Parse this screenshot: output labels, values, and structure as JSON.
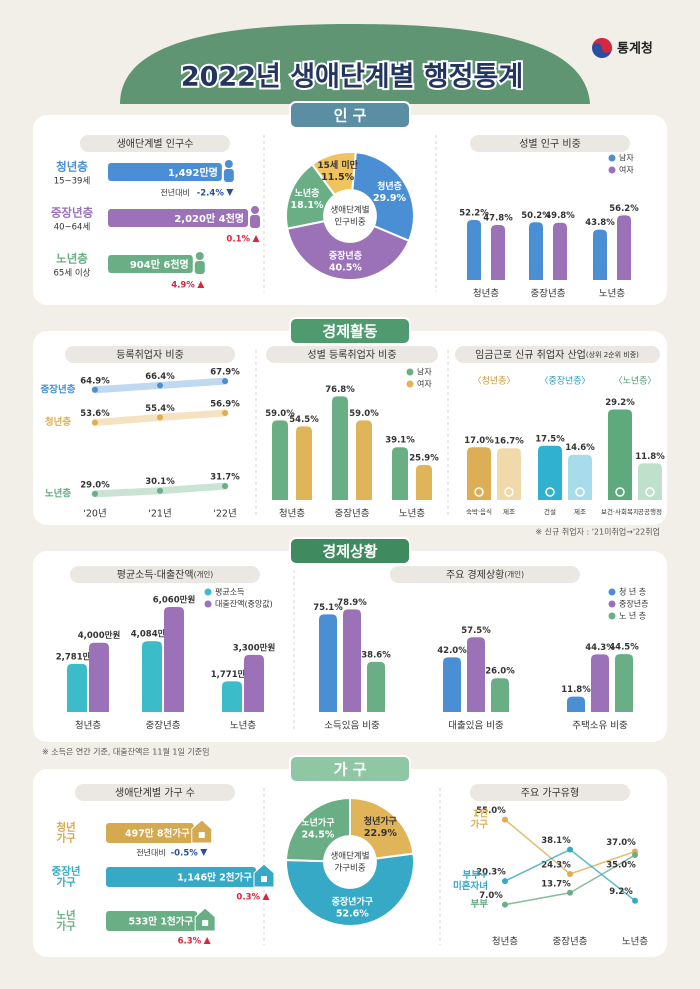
{
  "header": {
    "title": "2022년 생애단계별 행정통계",
    "org": "통계청"
  },
  "population": {
    "tab": "인 구",
    "count": {
      "title": "생애단계별 인구수",
      "rows": [
        {
          "name": "청년층",
          "age": "15~39세",
          "value": 1492,
          "value_label": "1,492만명",
          "color": "#4a8fd4",
          "note": "전년대비",
          "change": -2.4,
          "change_label": "-2.4%"
        },
        {
          "name": "중장년층",
          "age": "40~64세",
          "value": 2020.4,
          "value_label": "2,020만 4천명",
          "color": "#9b72b8",
          "change": 0.1,
          "change_label": "0.1%"
        },
        {
          "name": "노년층",
          "age": "65세 이상",
          "value": 904.6,
          "value_label": "904만 6천명",
          "color": "#6aae86",
          "change": 4.9,
          "change_label": "4.9%"
        }
      ]
    },
    "share": {
      "center": [
        "생애단계별",
        "인구비중"
      ],
      "categories": [
        "청년층",
        "중장년층",
        "노년층",
        "15세 미만"
      ],
      "values": [
        29.9,
        40.5,
        18.1,
        11.5
      ],
      "value_labels": [
        "29.9%",
        "40.5%",
        "18.1%",
        "11.5%"
      ],
      "colors": [
        "#4a8fd4",
        "#9b72b8",
        "#6aae86",
        "#f0c35e"
      ]
    },
    "gender": {
      "title": "성별 인구 비중",
      "categories": [
        "청년층",
        "중장년층",
        "노년층"
      ],
      "series": [
        {
          "name": "남자",
          "color": "#4a8fd4",
          "values": [
            52.2,
            50.2,
            43.8
          ],
          "value_labels": [
            "52.2%",
            "50.2%",
            "43.8%"
          ]
        },
        {
          "name": "여자",
          "color": "#9b72b8",
          "values": [
            47.8,
            49.8,
            56.2
          ],
          "value_labels": [
            "47.8%",
            "49.8%",
            "56.2%"
          ]
        }
      ]
    }
  },
  "economic_activity": {
    "tab": "경제활동",
    "registered": {
      "title": "등록취업자 비중",
      "x": [
        "'20년",
        "'21년",
        "'22년"
      ],
      "series": [
        {
          "name": "중장년층",
          "color": "#4a8fd4",
          "values": [
            64.9,
            66.4,
            67.9
          ],
          "value_labels": [
            "64.9%",
            "66.4%",
            "67.9%"
          ]
        },
        {
          "name": "청년층",
          "color": "#e0ad4c",
          "values": [
            53.6,
            55.4,
            56.9
          ],
          "value_labels": [
            "53.6%",
            "55.4%",
            "56.9%"
          ]
        },
        {
          "name": "노년층",
          "color": "#6aae86",
          "values": [
            29.0,
            30.1,
            31.7
          ],
          "value_labels": [
            "29.0%",
            "30.1%",
            "31.7%"
          ]
        }
      ]
    },
    "gender": {
      "title": "성별 등록취업자 비중",
      "categories": [
        "청년층",
        "중장년층",
        "노년층"
      ],
      "series": [
        {
          "name": "남자",
          "color": "#6aae86",
          "values": [
            59.0,
            76.8,
            39.1
          ],
          "value_labels": [
            "59.0%",
            "76.8%",
            "39.1%"
          ]
        },
        {
          "name": "여자",
          "color": "#e0b458",
          "values": [
            54.5,
            59.0,
            25.9
          ],
          "value_labels": [
            "54.5%",
            "59.0%",
            "25.9%"
          ]
        }
      ]
    },
    "industry": {
      "title": "임금근로 신규 취업자 산업",
      "title_note": "(상위 2순위 비중)",
      "groups": [
        {
          "name": "〈청년층〉",
          "color": "#c99a3e",
          "items": [
            {
              "name": "숙박·음식",
              "value": 17.0,
              "value_label": "17.0%",
              "color": "#dcae55"
            },
            {
              "name": "제조",
              "value": 16.7,
              "value_label": "16.7%",
              "color": "#f0d9aa"
            }
          ]
        },
        {
          "name": "〈중장년층〉",
          "color": "#2a9fc0",
          "items": [
            {
              "name": "건설",
              "value": 17.5,
              "value_label": "17.5%",
              "color": "#2fb1cf"
            },
            {
              "name": "제조",
              "value": 14.6,
              "value_label": "14.6%",
              "color": "#a9dcea"
            }
          ]
        },
        {
          "name": "〈노년층〉",
          "color": "#4f9a6e",
          "items": [
            {
              "name": "보건·사회복지",
              "value": 29.2,
              "value_label": "29.2%",
              "color": "#5eaa7c"
            },
            {
              "name": "공공행정",
              "value": 11.8,
              "value_label": "11.8%",
              "color": "#bfe0cb"
            }
          ]
        }
      ],
      "note": "※ 신규 취업자 : '21미취업→'22취업"
    }
  },
  "economic_status": {
    "tab": "경제상황",
    "income": {
      "title": "평균소득·대출잔액",
      "title_note": "(개인)",
      "categories": [
        "청년층",
        "중장년층",
        "노년층"
      ],
      "series": [
        {
          "name": "평균소득",
          "color": "#3cbcc8",
          "values": [
            2781,
            4084,
            1771
          ],
          "value_labels": [
            "2,781만원",
            "4,084만원",
            "1,771만원"
          ]
        },
        {
          "name": "대출잔액(중앙값)",
          "color": "#9b72b8",
          "values": [
            4000,
            6060,
            3300
          ],
          "value_labels": [
            "4,000만원",
            "6,060만원",
            "3,300만원"
          ]
        }
      ]
    },
    "status": {
      "title": "주요 경제상황",
      "title_note": "(개인)",
      "categories": [
        "소득있음 비중",
        "대출있음 비중",
        "주택소유 비중"
      ],
      "series": [
        {
          "name": "청 년 층",
          "color": "#4a8fd4",
          "values": [
            75.1,
            42.0,
            11.8
          ],
          "value_labels": [
            "75.1%",
            "42.0%",
            "11.8%"
          ]
        },
        {
          "name": "중장년층",
          "color": "#9b72b8",
          "values": [
            78.9,
            57.5,
            44.3
          ],
          "value_labels": [
            "78.9%",
            "57.5%",
            "44.3%"
          ]
        },
        {
          "name": "노 년 층",
          "color": "#6aae86",
          "values": [
            38.6,
            26.0,
            44.5
          ],
          "value_labels": [
            "38.6%",
            "26.0%",
            "44.5%"
          ]
        }
      ]
    },
    "note": "※ 소득은 연간 기준, 대출잔액은 11월 1일 기준임"
  },
  "household": {
    "tab": "가 구",
    "count": {
      "title": "생애단계별 가구 수",
      "rows": [
        {
          "name": [
            "청년",
            "가구"
          ],
          "value": 497.8,
          "value_label": "497만 8천가구",
          "color": "#d4a94f",
          "note": "전년대비",
          "change": -0.5,
          "change_label": "-0.5%"
        },
        {
          "name": [
            "중장년",
            "가구"
          ],
          "value": 1146.2,
          "value_label": "1,146만 2천가구",
          "color": "#35a9c6",
          "change": 0.3,
          "change_label": "0.3%"
        },
        {
          "name": [
            "노년",
            "가구"
          ],
          "value": 533.1,
          "value_label": "533만 1천가구",
          "color": "#6aae86",
          "change": 6.3,
          "change_label": "6.3%"
        }
      ]
    },
    "share": {
      "center": [
        "생애단계별",
        "가구비중"
      ],
      "categories": [
        "청년가구",
        "중장년가구",
        "노년가구"
      ],
      "values": [
        22.9,
        52.6,
        24.5
      ],
      "value_labels": [
        "22.9%",
        "52.6%",
        "24.5%"
      ],
      "colors": [
        "#e0b458",
        "#35a9c6",
        "#6aae86"
      ]
    },
    "types": {
      "title": "주요 가구유형",
      "categories": [
        "청년층",
        "중장년층",
        "노년층"
      ],
      "series": [
        {
          "name": [
            "1인",
            "가구"
          ],
          "color": "#e0ad4c",
          "values": [
            55.0,
            24.3,
            37.0
          ],
          "value_labels": [
            "55.0%",
            "24.3%",
            "37.0%"
          ]
        },
        {
          "name": [
            "부부+",
            "미혼자녀"
          ],
          "color": "#35a9c6",
          "values": [
            20.3,
            38.1,
            9.2
          ],
          "value_labels": [
            "20.3%",
            "38.1%",
            "9.2%"
          ]
        },
        {
          "name": [
            "부부"
          ],
          "color": "#6aae86",
          "values": [
            7.0,
            13.7,
            35.0
          ],
          "value_labels": [
            "7.0%",
            "13.7%",
            "35.0%"
          ]
        }
      ]
    }
  }
}
